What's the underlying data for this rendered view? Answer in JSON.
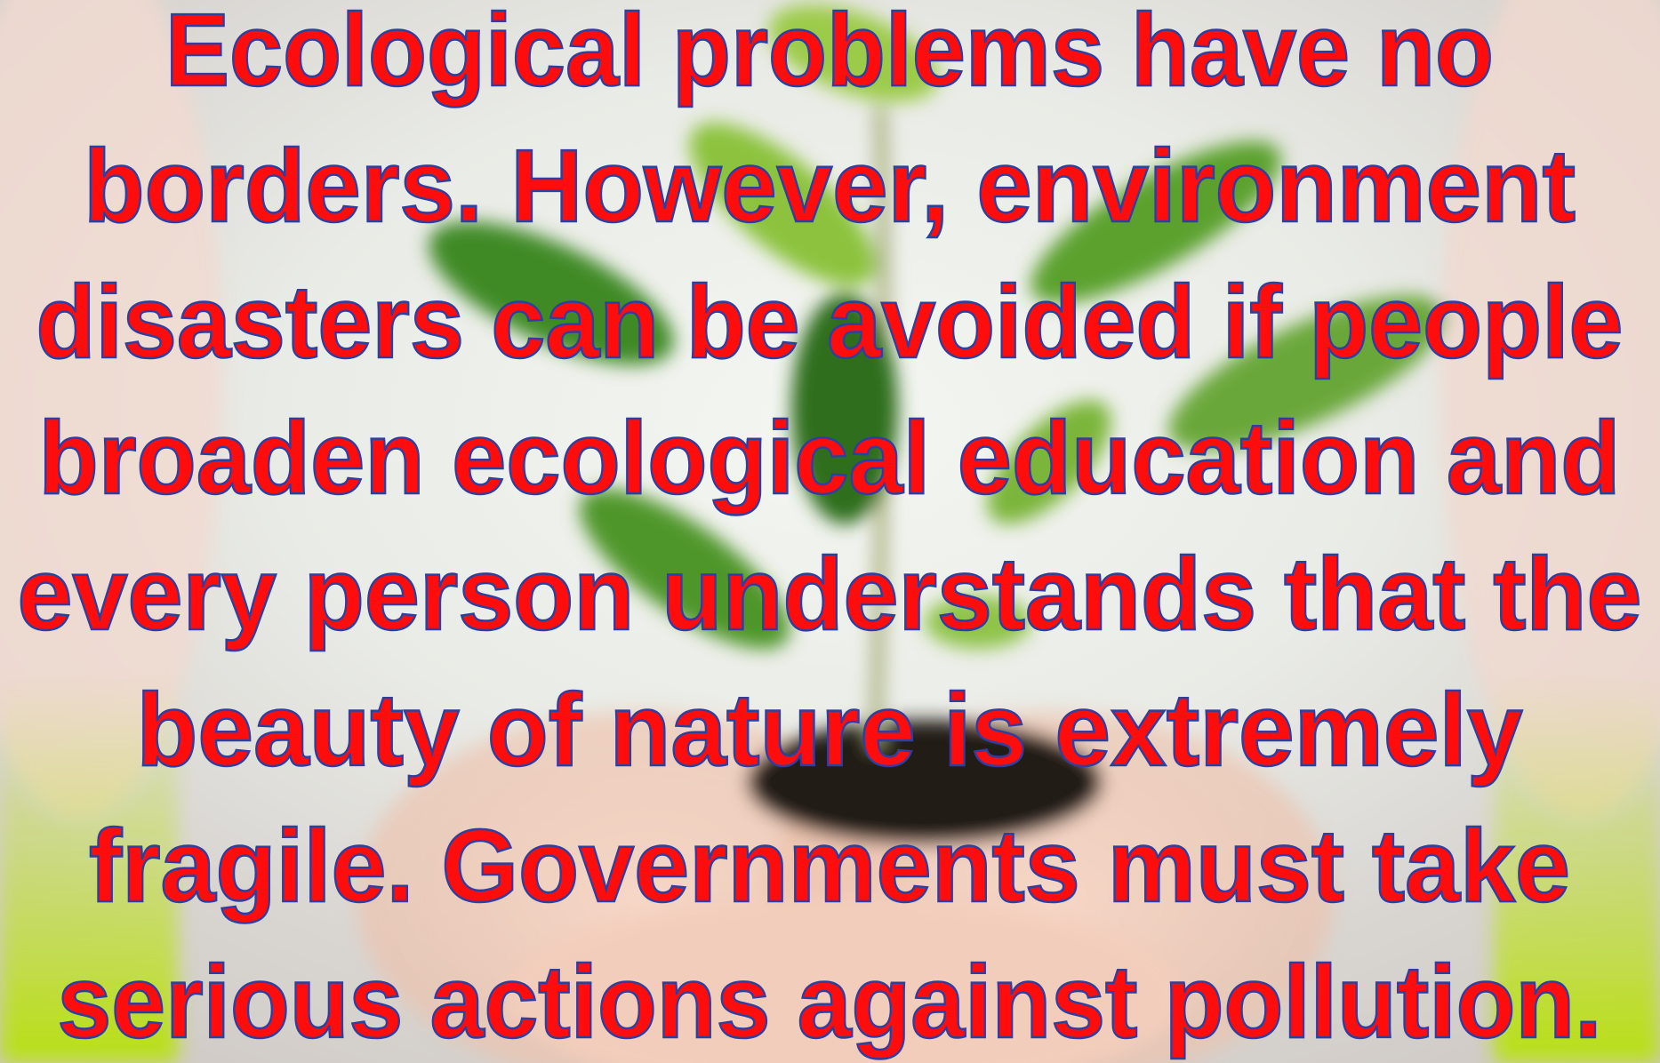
{
  "slide": {
    "text_lines": [
      "Ecological problems have no",
      "borders. However, environment",
      "disasters can be avoided if people",
      "broaden ecological education and",
      "every person understands that the",
      "beauty of nature is extremely",
      "fragile. Governments must take",
      "serious actions against pollution."
    ]
  }
}
